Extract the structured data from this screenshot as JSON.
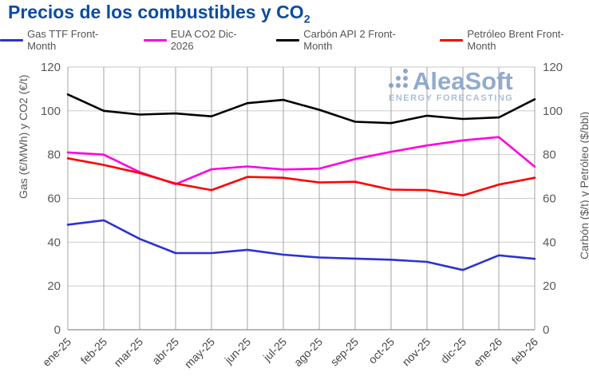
{
  "title": {
    "main": "Precios de los combustibles y CO",
    "sub": "2"
  },
  "watermark": {
    "name": "AleaSoft",
    "tagline": "ENERGY FORECASTING"
  },
  "chart_data": {
    "type": "line",
    "title": "Precios de los combustibles y CO2",
    "categories": [
      "ene-25",
      "feb-25",
      "mar-25",
      "abr-25",
      "may-25",
      "jun-25",
      "jul-25",
      "ago-25",
      "sep-25",
      "oct-25",
      "nov-25",
      "dic-25",
      "ene-26",
      "feb-26"
    ],
    "series": [
      {
        "name": "Gas TTF Front-Month",
        "color": "#2b32d2",
        "axis": "left",
        "values": [
          48,
          50,
          41.5,
          35,
          35,
          36.5,
          34.3,
          33,
          32.5,
          32,
          31,
          27.3,
          34,
          32.4
        ]
      },
      {
        "name": "EUA CO2 Dic-2026",
        "color": "#ff00e0",
        "axis": "left",
        "values": [
          81,
          80,
          72,
          66.5,
          73.3,
          74.6,
          73.2,
          73.6,
          78,
          81.3,
          84.2,
          86.5,
          88,
          74.5
        ]
      },
      {
        "name": "Carbón API 2 Front-Month",
        "color": "#000000",
        "axis": "right",
        "values": [
          107.5,
          100,
          98.3,
          98.8,
          97.5,
          103.5,
          105,
          100.5,
          95,
          94.4,
          97.8,
          96.3,
          97,
          105.3
        ]
      },
      {
        "name": "Petróleo Brent Front-Month",
        "color": "#fe0000",
        "axis": "right",
        "values": [
          78.3,
          75.3,
          71.6,
          66.8,
          63.8,
          69.8,
          69.4,
          67.3,
          67.6,
          64,
          63.8,
          61.4,
          66.3,
          69.4
        ]
      }
    ],
    "ylim": [
      0,
      120
    ],
    "yticks": [
      0,
      20,
      40,
      60,
      80,
      100,
      120
    ],
    "ylabel_left": "Gas (€/MWh) y CO2 (€/t)",
    "ylabel_right": "Carbón ($/t) y Petróleo ($/bbl)",
    "xlabel": "",
    "grid": true,
    "legend_position": "top",
    "colors": {
      "title": "#0d4c9e",
      "horizontal_grid": "#d2d2d2",
      "vertical_grid": "#a3a3a3",
      "axis_line": "#8c8c8c",
      "ytick_text": "#595959",
      "xtick_text": "#474747",
      "legend_text": "#545454",
      "watermark": "#82a0c9"
    }
  }
}
